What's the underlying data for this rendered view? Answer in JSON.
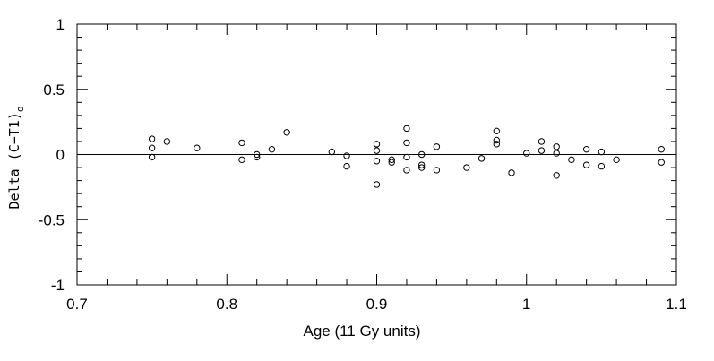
{
  "chart_data": {
    "type": "scatter",
    "title": "",
    "xlabel": "Age (11 Gy units)",
    "ylabel": {
      "main": "Delta (C−T1)",
      "sub": "o"
    },
    "xlim": [
      0.7,
      1.1
    ],
    "ylim": [
      -1,
      1
    ],
    "x_ticks": [
      0.7,
      0.8,
      0.9,
      1.0,
      1.1
    ],
    "x_tick_labels": [
      "0.7",
      "0.8",
      "0.9",
      "1",
      "1.1"
    ],
    "y_ticks": [
      -1,
      -0.5,
      0,
      0.5,
      1
    ],
    "y_tick_labels": [
      "-1",
      "-0.5",
      "0",
      "0.5",
      "1"
    ],
    "grid": false,
    "reference_line_y": 0,
    "marker": "open-circle",
    "points": [
      [
        0.75,
        0.12
      ],
      [
        0.75,
        0.05
      ],
      [
        0.75,
        -0.02
      ],
      [
        0.76,
        0.1
      ],
      [
        0.78,
        0.05
      ],
      [
        0.81,
        0.09
      ],
      [
        0.81,
        -0.04
      ],
      [
        0.82,
        0.0
      ],
      [
        0.82,
        -0.02
      ],
      [
        0.83,
        0.04
      ],
      [
        0.84,
        0.17
      ],
      [
        0.87,
        0.02
      ],
      [
        0.88,
        -0.01
      ],
      [
        0.88,
        -0.09
      ],
      [
        0.9,
        0.08
      ],
      [
        0.9,
        0.03
      ],
      [
        0.9,
        -0.05
      ],
      [
        0.9,
        -0.23
      ],
      [
        0.91,
        -0.04
      ],
      [
        0.91,
        -0.06
      ],
      [
        0.92,
        0.2
      ],
      [
        0.92,
        0.09
      ],
      [
        0.92,
        -0.02
      ],
      [
        0.92,
        -0.12
      ],
      [
        0.93,
        0.0
      ],
      [
        0.93,
        -0.08
      ],
      [
        0.93,
        -0.1
      ],
      [
        0.94,
        0.06
      ],
      [
        0.94,
        -0.12
      ],
      [
        0.96,
        -0.1
      ],
      [
        0.97,
        -0.03
      ],
      [
        0.98,
        0.18
      ],
      [
        0.98,
        0.11
      ],
      [
        0.98,
        0.08
      ],
      [
        0.99,
        -0.14
      ],
      [
        1.0,
        0.01
      ],
      [
        1.01,
        0.1
      ],
      [
        1.01,
        0.03
      ],
      [
        1.02,
        0.06
      ],
      [
        1.02,
        0.01
      ],
      [
        1.02,
        -0.16
      ],
      [
        1.03,
        -0.04
      ],
      [
        1.04,
        0.04
      ],
      [
        1.04,
        -0.08
      ],
      [
        1.05,
        0.02
      ],
      [
        1.05,
        -0.09
      ],
      [
        1.06,
        -0.04
      ],
      [
        1.09,
        0.04
      ],
      [
        1.09,
        -0.06
      ]
    ]
  }
}
